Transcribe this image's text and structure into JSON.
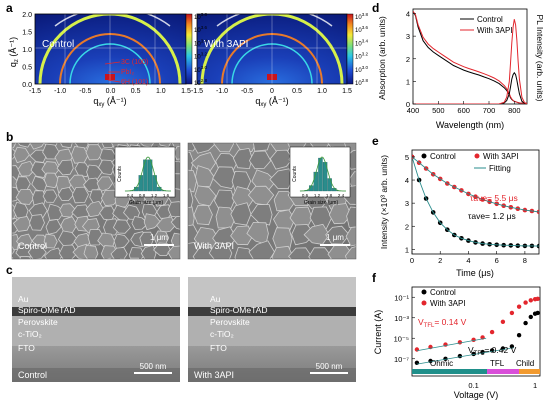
{
  "figure": {
    "panel_letters": [
      "a",
      "b",
      "c",
      "d",
      "e",
      "f"
    ],
    "condition_labels": {
      "control": "Control",
      "with_3api": "With 3API"
    },
    "panel_a": {
      "ylabel_main": "q",
      "ylabel_sub": "z",
      "ylabel_unit": "(Å⁻¹)",
      "xlabel_main": "q",
      "xlabel_sub": "xy",
      "xlabel_unit": "(Å⁻¹)",
      "y_ticks": [
        "2.0",
        "1.5",
        "1.0",
        "0.5",
        "0.0"
      ],
      "x_ticks": [
        "-1.5",
        "-1.0",
        "-0.5",
        "0.0",
        "0.5",
        "1.0",
        "1.5"
      ],
      "x_ticks_right": [
        "-1.5",
        "-1.0",
        "-0.5",
        "0",
        "0.5",
        "1.0",
        "1.5"
      ],
      "colorbar_base": "10",
      "colorbar_exponents": [
        "3.8",
        "3.6",
        "3.4",
        "3.2",
        "3.0",
        "2.8"
      ],
      "annotations": [
        "3C (100)",
        "PbI₂",
        "6H (101)"
      ]
    },
    "panel_b": {
      "inset_ylabel": "Counts",
      "inset_xlabel": "Grain size (μm)",
      "inset_ticks_control": [
        "0.4",
        "0.8",
        "1.2",
        "1.6"
      ],
      "inset_ticks_3api": [
        "0.6",
        "1.2",
        "1.8",
        "2.4"
      ],
      "scale_bar": "1 μm"
    },
    "panel_c": {
      "layers": [
        "Au",
        "Spiro-OMeTAD",
        "Perovskite",
        "c-TiO₂",
        "FTO"
      ],
      "scale_bar": "500 nm"
    },
    "panel_d": {
      "ylabel_left": "Absorption (arb. units)",
      "ylabel_right": "PL Intensity (arb. units)",
      "xlabel": "Wavelength (nm)",
      "x_ticks": [
        "400",
        "500",
        "600",
        "700",
        "800"
      ],
      "y_ticks": [
        "0",
        "1",
        "2",
        "3",
        "4"
      ],
      "legend": [
        "Control",
        "With 3API"
      ]
    },
    "panel_e": {
      "ylabel": "Intensity (×10³ arb. units)",
      "xlabel": "Time (μs)",
      "x_ticks": [
        "0",
        "2",
        "4",
        "6",
        "8"
      ],
      "y_ticks": [
        "1",
        "2",
        "3",
        "4",
        "5"
      ],
      "legend": [
        "Control",
        "With 3API",
        "Fitting"
      ],
      "tau_3api": "τave= 5.5 μs",
      "tau_control": "τave= 1.2 μs"
    },
    "panel_f": {
      "ylabel": "Current (A)",
      "xlabel": "Voltage (V)",
      "y_ticks": [
        "10⁻¹",
        "10⁻³",
        "10⁻⁵",
        "10⁻⁷"
      ],
      "x_ticks": [
        "0.1",
        "1"
      ],
      "legend": [
        "Control",
        "With 3API"
      ],
      "vtfl_3api": "V_TFL= 0.14 V",
      "vtfl_control": "V_TFL= 0.42 V",
      "regions": [
        "Ohmic",
        "TFL",
        "Child"
      ]
    },
    "colors": {
      "control": "#000000",
      "with_3api": "#e3262d",
      "fitting": "#2a8c8c",
      "ohmic": "#1f8f8a",
      "tfl": "#d94fd9",
      "child": "#f29a2e"
    }
  },
  "chart_data": [
    {
      "type": "line",
      "title": "",
      "xlabel": "Wavelength (nm)",
      "ylabel": "Absorption / PL Intensity (arb. units)",
      "xlim": [
        400,
        850
      ],
      "ylim": [
        0,
        4.2
      ],
      "x": [
        400,
        410,
        420,
        440,
        460,
        480,
        500,
        520,
        540,
        560,
        580,
        600,
        620,
        640,
        660,
        680,
        700,
        720,
        740,
        760,
        770,
        780,
        785,
        790,
        795,
        800,
        805,
        810,
        815,
        820,
        830,
        840,
        850
      ],
      "series": [
        {
          "name": "Control",
          "kind": "absorption",
          "values": [
            4.1,
            3.9,
            3.4,
            2.8,
            2.5,
            2.3,
            2.15,
            2.0,
            1.85,
            1.7,
            1.6,
            1.5,
            1.42,
            1.35,
            1.28,
            1.2,
            1.12,
            1.02,
            0.9,
            0.72,
            0.6,
            0.4,
            0.28,
            0.2,
            0.15,
            0.12,
            0.1,
            0.08,
            0.06,
            0.05,
            0.04,
            0.03,
            0.03
          ]
        },
        {
          "name": "With 3API",
          "kind": "absorption",
          "values": [
            4.1,
            3.95,
            3.5,
            2.95,
            2.65,
            2.45,
            2.3,
            2.15,
            2.0,
            1.85,
            1.75,
            1.65,
            1.57,
            1.5,
            1.42,
            1.34,
            1.25,
            1.15,
            1.02,
            0.82,
            0.68,
            0.46,
            0.32,
            0.22,
            0.16,
            0.12,
            0.1,
            0.08,
            0.06,
            0.05,
            0.04,
            0.03,
            0.03
          ]
        },
        {
          "name": "Control",
          "kind": "PL",
          "values": [
            0,
            0,
            0,
            0,
            0,
            0,
            0,
            0,
            0,
            0,
            0,
            0,
            0,
            0,
            0,
            0,
            0,
            0,
            0,
            0.05,
            0.15,
            0.45,
            0.75,
            1.1,
            1.3,
            1.38,
            1.3,
            1.05,
            0.75,
            0.45,
            0.12,
            0.03,
            0
          ]
        },
        {
          "name": "With 3API",
          "kind": "PL",
          "values": [
            0,
            0,
            0,
            0,
            0,
            0,
            0,
            0,
            0,
            0,
            0,
            0,
            0,
            0,
            0,
            0,
            0,
            0,
            0,
            0.08,
            0.3,
            1.0,
            1.8,
            2.7,
            3.4,
            3.75,
            3.5,
            2.8,
            1.9,
            1.1,
            0.3,
            0.06,
            0
          ]
        }
      ]
    },
    {
      "type": "scatter",
      "title": "",
      "xlabel": "Time (μs)",
      "ylabel": "Intensity (×10³ arb. units)",
      "xlim": [
        0,
        9
      ],
      "ylim": [
        0.8,
        5.3
      ],
      "x": [
        0,
        0.5,
        1,
        1.5,
        2,
        2.5,
        3,
        3.5,
        4,
        4.5,
        5,
        5.5,
        6,
        6.5,
        7,
        7.5,
        8,
        8.5,
        9
      ],
      "series": [
        {
          "name": "Control",
          "values": [
            5.0,
            4.0,
            3.2,
            2.6,
            2.15,
            1.85,
            1.62,
            1.48,
            1.38,
            1.3,
            1.25,
            1.22,
            1.2,
            1.18,
            1.17,
            1.16,
            1.15,
            1.15,
            1.14
          ]
        },
        {
          "name": "With 3API",
          "values": [
            5.0,
            4.75,
            4.5,
            4.25,
            4.05,
            3.85,
            3.7,
            3.55,
            3.4,
            3.28,
            3.16,
            3.06,
            2.97,
            2.89,
            2.82,
            2.76,
            2.7,
            2.66,
            2.62
          ]
        }
      ]
    },
    {
      "type": "scatter",
      "title": "",
      "xlabel": "Voltage (V)",
      "ylabel": "Current (A)",
      "x_scale": "log",
      "y_scale": "log",
      "xlim": [
        0.01,
        1.2
      ],
      "ylim": [
        1e-08,
        1
      ],
      "x": [
        0.012,
        0.02,
        0.035,
        0.06,
        0.1,
        0.14,
        0.2,
        0.3,
        0.42,
        0.55,
        0.7,
        0.85,
        1.0,
        1.1
      ],
      "series": [
        {
          "name": "Control",
          "values": [
            4e-08,
            6e-08,
            1e-07,
            1.8e-07,
            3e-07,
            4.5e-07,
            6.5e-07,
            1e-06,
            1.6e-06,
            2e-05,
            0.0003,
            0.0012,
            0.0025,
            0.003
          ]
        },
        {
          "name": "With 3API",
          "values": [
            8e-07,
            1.4e-06,
            2.4e-06,
            4e-06,
            7e-06,
            1.2e-05,
            4e-05,
            0.0004,
            0.003,
            0.012,
            0.03,
            0.05,
            0.065,
            0.07
          ]
        }
      ]
    }
  ]
}
